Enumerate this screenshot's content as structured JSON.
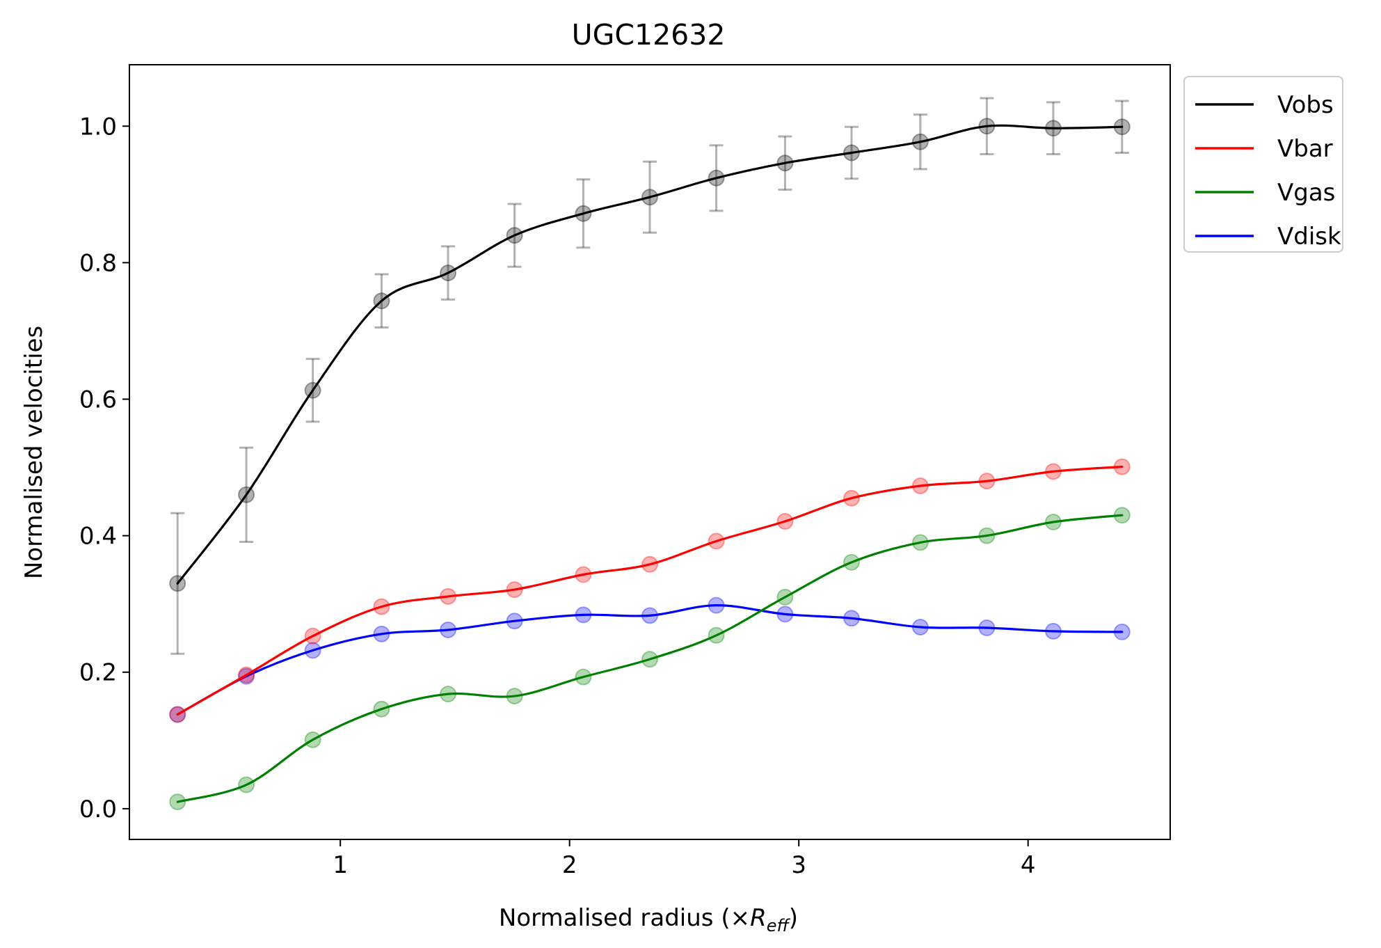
{
  "chart_data": {
    "type": "line",
    "title": "UGC12632",
    "xlabel_prefix": "Normalised radius (×",
    "xlabel_var": "R",
    "xlabel_sub": "eff",
    "xlabel_suffix": ")",
    "ylabel": "Normalised velocities",
    "xlim": [
      0.08,
      4.62
    ],
    "ylim": [
      -0.045,
      1.09
    ],
    "xticks": [
      1,
      2,
      3,
      4
    ],
    "xtick_labels": [
      "1",
      "2",
      "3",
      "4"
    ],
    "yticks": [
      0.0,
      0.2,
      0.4,
      0.6,
      0.8,
      1.0
    ],
    "ytick_labels": [
      "0.0",
      "0.2",
      "0.4",
      "0.6",
      "0.8",
      "1.0"
    ],
    "grid": false,
    "legend_position": "outside top-right",
    "x": [
      0.29,
      0.59,
      0.88,
      1.18,
      1.47,
      1.76,
      2.06,
      2.35,
      2.64,
      2.94,
      3.23,
      3.53,
      3.82,
      4.11,
      4.41
    ],
    "series": [
      {
        "name": "Vobs",
        "color": "#000000",
        "values": [
          0.33,
          0.46,
          0.613,
          0.744,
          0.785,
          0.84,
          0.872,
          0.896,
          0.924,
          0.946,
          0.961,
          0.977,
          1.0,
          0.997,
          0.999
        ],
        "errors": [
          0.103,
          0.069,
          0.046,
          0.039,
          0.039,
          0.046,
          0.05,
          0.052,
          0.048,
          0.039,
          0.038,
          0.04,
          0.041,
          0.038,
          0.038
        ]
      },
      {
        "name": "Vbar",
        "color": "#ff0000",
        "values": [
          0.138,
          0.196,
          0.253,
          0.296,
          0.311,
          0.321,
          0.343,
          0.358,
          0.392,
          0.421,
          0.455,
          0.473,
          0.48,
          0.494,
          0.501
        ]
      },
      {
        "name": "Vgas",
        "color": "#008000",
        "values": [
          0.01,
          0.035,
          0.101,
          0.146,
          0.168,
          0.165,
          0.193,
          0.219,
          0.254,
          0.31,
          0.361,
          0.39,
          0.4,
          0.42,
          0.43
        ]
      },
      {
        "name": "Vdisk",
        "color": "#0000ff",
        "values": [
          0.138,
          0.194,
          0.232,
          0.256,
          0.262,
          0.275,
          0.284,
          0.283,
          0.298,
          0.285,
          0.279,
          0.266,
          0.265,
          0.26,
          0.259
        ]
      }
    ]
  }
}
